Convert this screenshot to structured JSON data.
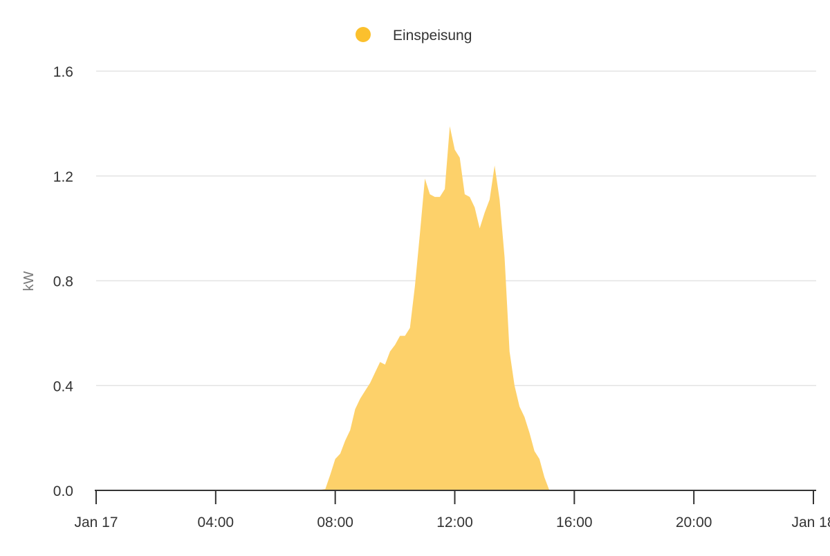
{
  "chart_data": {
    "type": "area",
    "legend": {
      "placement": "top-center",
      "entries": [
        "Einspeisung"
      ]
    },
    "ylabel": "kW",
    "xlabel": "",
    "ylim": [
      0,
      1.6
    ],
    "yticks": [
      "0.0",
      "0.4",
      "0.8",
      "1.2",
      "1.6"
    ],
    "ytick_values": [
      0,
      0.4,
      0.8,
      1.2,
      1.6
    ],
    "xlim": [
      "2024-01-17 00:00",
      "2024-01-18 00:00"
    ],
    "xticks": [
      "Jan 17",
      "04:00",
      "08:00",
      "12:00",
      "16:00",
      "20:00",
      "Jan 18"
    ],
    "xtick_hours": [
      0,
      4,
      8,
      12,
      16,
      20,
      24
    ],
    "grid": true,
    "colors": {
      "fill": "#fdd16a",
      "legend_dot": "#fbc02d",
      "grid": "#e3e3e3",
      "axis": "#333333"
    },
    "series": [
      {
        "name": "Einspeisung",
        "x": [
          "00:00",
          "07:30",
          "07:40",
          "07:50",
          "08:00",
          "08:10",
          "08:20",
          "08:30",
          "08:40",
          "08:50",
          "09:00",
          "09:10",
          "09:20",
          "09:30",
          "09:40",
          "09:50",
          "10:00",
          "10:10",
          "10:20",
          "10:30",
          "10:40",
          "10:50",
          "11:00",
          "11:10",
          "11:20",
          "11:30",
          "11:40",
          "11:50",
          "12:00",
          "12:10",
          "12:20",
          "12:30",
          "12:40",
          "12:50",
          "13:00",
          "13:10",
          "13:20",
          "13:30",
          "13:40",
          "13:50",
          "14:00",
          "14:10",
          "14:20",
          "14:30",
          "14:40",
          "14:50",
          "15:00",
          "15:10",
          "24:00"
        ],
        "values": [
          0,
          0.002,
          0.005,
          0.06,
          0.12,
          0.14,
          0.19,
          0.23,
          0.31,
          0.35,
          0.38,
          0.41,
          0.45,
          0.49,
          0.48,
          0.53,
          0.555,
          0.59,
          0.59,
          0.62,
          0.78,
          0.98,
          1.19,
          1.13,
          1.12,
          1.12,
          1.15,
          1.39,
          1.3,
          1.27,
          1.13,
          1.12,
          1.08,
          1.0,
          1.06,
          1.11,
          1.24,
          1.11,
          0.89,
          0.53,
          0.4,
          0.32,
          0.28,
          0.22,
          0.15,
          0.12,
          0.05,
          0,
          0
        ]
      }
    ]
  }
}
